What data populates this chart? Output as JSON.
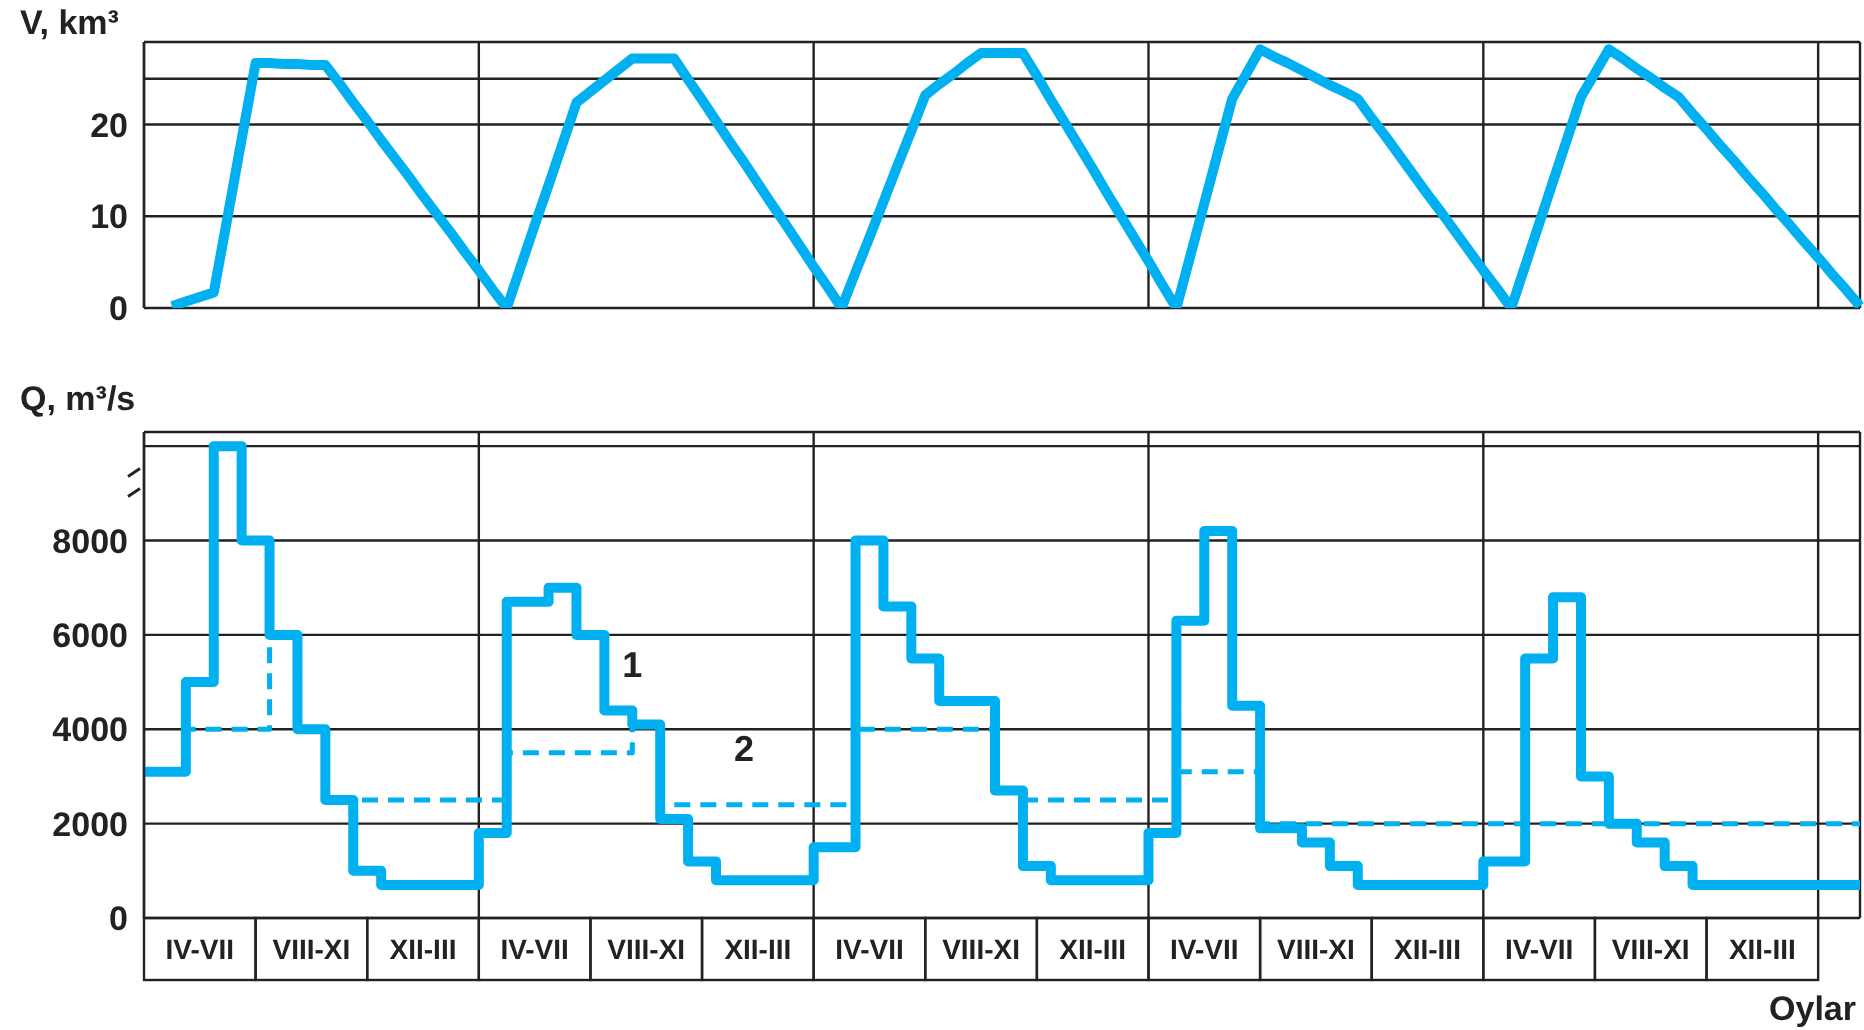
{
  "chart_data": [
    {
      "type": "line",
      "ylabel": "V, km³",
      "tick_labels": "y",
      "ylim": [
        0,
        29
      ],
      "yticks": [
        0,
        10,
        20,
        {
          "value": 25,
          "label": null
        }
      ],
      "grid": true,
      "marker": "none",
      "categories": [
        null,
        null,
        null,
        null,
        null,
        null,
        null,
        null,
        null,
        null,
        null,
        null,
        null,
        null,
        null,
        null,
        null,
        null,
        null,
        null,
        null,
        null,
        null,
        null,
        null,
        null,
        null,
        null,
        null,
        null,
        null,
        null,
        null,
        null,
        null,
        null,
        null,
        null,
        null,
        null,
        null,
        null,
        null,
        null,
        null,
        null,
        null,
        null,
        null,
        null,
        null,
        null,
        null,
        null,
        null,
        null,
        null,
        null,
        null,
        null,
        null,
        null,
        null,
        null,
        null,
        null,
        null,
        null,
        null,
        null,
        null,
        null,
        null,
        null,
        null,
        null,
        null,
        null,
        null,
        null,
        null,
        null,
        null,
        null,
        null,
        null,
        null,
        null,
        null,
        null,
        null,
        null,
        null,
        null,
        null,
        null,
        null,
        null,
        null,
        null,
        null,
        null,
        null,
        null,
        null,
        null,
        null,
        null,
        null,
        null,
        null,
        null,
        null,
        null,
        null,
        null,
        null,
        null,
        null,
        null,
        null,
        null,
        null,
        null
      ],
      "series": [
        {
          "color": "#00b0f0",
          "line_style": "solid",
          "values": [
            null,
            null,
            0.2,
            0.7,
            1.2,
            1.7,
            10.0,
            18.4,
            26.7,
            26.7,
            26.6,
            26.6,
            26.5,
            26.5,
            24.5,
            22.4,
            20.4,
            18.3,
            16.3,
            14.3,
            12.2,
            10.2,
            8.2,
            6.1,
            4.1,
            2.0,
            0,
            4.5,
            9.0,
            13.4,
            17.9,
            22.4,
            23.6,
            24.8,
            26.0,
            27.2,
            27.2,
            27.2,
            27.2,
            24.9,
            22.7,
            20.4,
            18.1,
            15.9,
            13.6,
            11.3,
            9.1,
            6.8,
            4.5,
            2.3,
            0,
            3.9,
            7.7,
            11.6,
            15.5,
            19.3,
            23.2,
            24.4,
            25.5,
            26.7,
            27.8,
            27.8,
            27.8,
            27.8,
            25.3,
            22.7,
            20.2,
            17.7,
            15.2,
            12.6,
            10.1,
            7.6,
            5.1,
            2.5,
            0,
            5.7,
            11.4,
            17.1,
            22.8,
            25.5,
            28.2,
            27.4,
            26.7,
            25.9,
            25.1,
            24.3,
            23.6,
            22.8,
            20.7,
            18.7,
            16.6,
            14.5,
            12.4,
            10.4,
            8.3,
            6.2,
            4.1,
            2.1,
            0,
            4.6,
            9.2,
            13.8,
            18.4,
            23,
            25.6,
            28.2,
            27.2,
            26.1,
            25.1,
            24.0,
            23,
            21.2,
            19.5,
            17.7,
            16.0,
            14.2,
            12.5,
            10.7,
            9.0,
            7.2,
            5.5,
            3.7,
            2.0,
            0.2
          ]
        }
      ]
    },
    {
      "type": "step",
      "ylabel": "Q, m³/s",
      "xlabel": "Oylar",
      "ylim": [
        0,
        10300
      ],
      "yticks": [
        0,
        2000,
        4000,
        6000,
        8000,
        {
          "value": 10000,
          "label": null
        }
      ],
      "grid": true,
      "marker": "none",
      "categories": [
        null,
        null,
        null,
        null,
        "IV-VII",
        null,
        null,
        null,
        null,
        null,
        null,
        null,
        "VIII-XI",
        null,
        null,
        null,
        null,
        null,
        null,
        null,
        "XII-III",
        null,
        null,
        null,
        null,
        null,
        null,
        null,
        "IV-VII",
        null,
        null,
        null,
        null,
        null,
        null,
        null,
        "VIII-XI",
        null,
        null,
        null,
        null,
        null,
        null,
        null,
        "XII-III",
        null,
        null,
        null,
        null,
        null,
        null,
        null,
        "IV-VII",
        null,
        null,
        null,
        null,
        null,
        null,
        null,
        "VIII-XI",
        null,
        null,
        null,
        null,
        null,
        null,
        null,
        "XII-III",
        null,
        null,
        null,
        null,
        null,
        null,
        null,
        "IV-VII",
        null,
        null,
        null,
        null,
        null,
        null,
        null,
        "VIII-XI",
        null,
        null,
        null,
        null,
        null,
        null,
        null,
        "XII-III",
        null,
        null,
        null,
        null,
        null,
        null,
        null,
        "IV-VII",
        null,
        null,
        null,
        null,
        null,
        null,
        null,
        "VIII-XI",
        null,
        null,
        null,
        null,
        null,
        null,
        null,
        "XII-III",
        null,
        null,
        null,
        null,
        null,
        null,
        null
      ],
      "series": [
        {
          "name": "1",
          "color": "#00b0f0",
          "line_style": "solid",
          "values": [
            3100,
            3100,
            3100,
            5000,
            5000,
            10000,
            10000,
            8000,
            8000,
            6000,
            6000,
            4000,
            4000,
            2500,
            2500,
            1000,
            1000,
            700,
            700,
            700,
            700,
            700,
            700,
            700,
            1800,
            1800,
            6700,
            6700,
            6700,
            7000,
            7000,
            6000,
            6000,
            4400,
            4400,
            4100,
            4100,
            2100,
            2100,
            1200,
            1200,
            800,
            800,
            800,
            800,
            800,
            800,
            800,
            1500,
            1500,
            1500,
            8000,
            8000,
            6600,
            6600,
            5500,
            5500,
            4600,
            4600,
            4600,
            4600,
            2700,
            2700,
            1100,
            1100,
            800,
            800,
            800,
            800,
            800,
            800,
            800,
            1800,
            1800,
            6300,
            6300,
            8200,
            8200,
            4500,
            4500,
            1900,
            1900,
            1900,
            1600,
            1600,
            1100,
            1100,
            700,
            700,
            700,
            700,
            700,
            700,
            700,
            700,
            700,
            1200,
            1200,
            1200,
            5500,
            5500,
            6800,
            6800,
            3000,
            3000,
            2000,
            2000,
            1600,
            1600,
            1100,
            1100,
            700,
            700,
            700,
            700,
            700,
            700,
            700,
            700,
            700,
            700,
            700,
            700,
            700
          ]
        },
        {
          "name": "2",
          "color": "#00b0f0",
          "line_style": "dashed",
          "values": [
            3100,
            3100,
            3100,
            4000,
            4000,
            4000,
            4000,
            4000,
            4000,
            6000,
            6000,
            4000,
            4000,
            2500,
            2500,
            2500,
            2500,
            2500,
            2500,
            2500,
            2500,
            2500,
            2500,
            2500,
            2500,
            2500,
            3500,
            3500,
            3500,
            3500,
            3500,
            3500,
            3500,
            3500,
            3500,
            4100,
            4100,
            2400,
            2400,
            2400,
            2400,
            2400,
            2400,
            2400,
            2400,
            2400,
            2400,
            2400,
            2400,
            2400,
            2400,
            4000,
            4000,
            4000,
            4000,
            4000,
            4000,
            4000,
            4000,
            4000,
            4000,
            2700,
            2700,
            2500,
            2500,
            2500,
            2500,
            2500,
            2500,
            2500,
            2500,
            2500,
            2500,
            2500,
            3100,
            3100,
            3100,
            3100,
            3100,
            3100,
            2000,
            2000,
            2000,
            2000,
            2000,
            2000,
            2000,
            2000,
            2000,
            2000,
            2000,
            2000,
            2000,
            2000,
            2000,
            2000,
            2000,
            2000,
            2000,
            2000,
            2000,
            2000,
            2000,
            2000,
            2000,
            2000,
            2000,
            2000,
            2000,
            2000,
            2000,
            2000,
            2000,
            2000,
            2000,
            2000,
            2000,
            2000,
            2000,
            2000,
            2000,
            2000,
            2000,
            2000
          ]
        }
      ]
    }
  ]
}
